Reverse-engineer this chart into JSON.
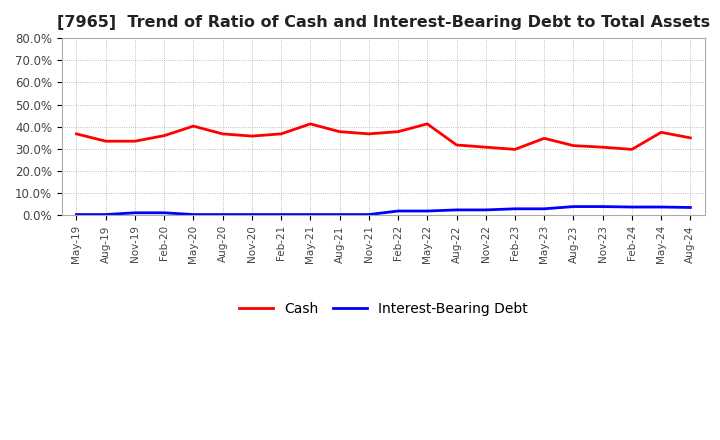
{
  "title": "[7965]  Trend of Ratio of Cash and Interest-Bearing Debt to Total Assets",
  "title_fontsize": 11.5,
  "background_color": "#ffffff",
  "plot_bg_color": "#ffffff",
  "grid_color": "#aaaaaa",
  "ylim": [
    0.0,
    0.8
  ],
  "yticks": [
    0.0,
    0.1,
    0.2,
    0.3,
    0.4,
    0.5,
    0.6,
    0.7,
    0.8
  ],
  "ytick_labels": [
    "0.0%",
    "10.0%",
    "20.0%",
    "30.0%",
    "40.0%",
    "50.0%",
    "60.0%",
    "70.0%",
    "80.0%"
  ],
  "cash_color": "#ff0000",
  "debt_color": "#0000ff",
  "cash_label": "Cash",
  "debt_label": "Interest-Bearing Debt",
  "cash_values": [
    0.368,
    0.335,
    0.335,
    0.36,
    0.403,
    0.368,
    0.358,
    0.368,
    0.413,
    0.378,
    0.368,
    0.378,
    0.413,
    0.318,
    0.308,
    0.298,
    0.348,
    0.315,
    0.308,
    0.298,
    0.375,
    0.35
  ],
  "debt_values": [
    0.004,
    0.004,
    0.012,
    0.012,
    0.004,
    0.004,
    0.004,
    0.004,
    0.004,
    0.004,
    0.004,
    0.02,
    0.02,
    0.025,
    0.025,
    0.03,
    0.03,
    0.04,
    0.04,
    0.038,
    0.038,
    0.036
  ],
  "xtick_labels": [
    "May-19",
    "Aug-19",
    "Nov-19",
    "Feb-20",
    "May-20",
    "Aug-20",
    "Nov-20",
    "Feb-21",
    "May-21",
    "Aug-21",
    "Nov-21",
    "Feb-22",
    "May-22",
    "Aug-22",
    "Nov-22",
    "Feb-23",
    "May-23",
    "Aug-23",
    "Nov-23",
    "Feb-24",
    "May-24",
    "Aug-24"
  ]
}
